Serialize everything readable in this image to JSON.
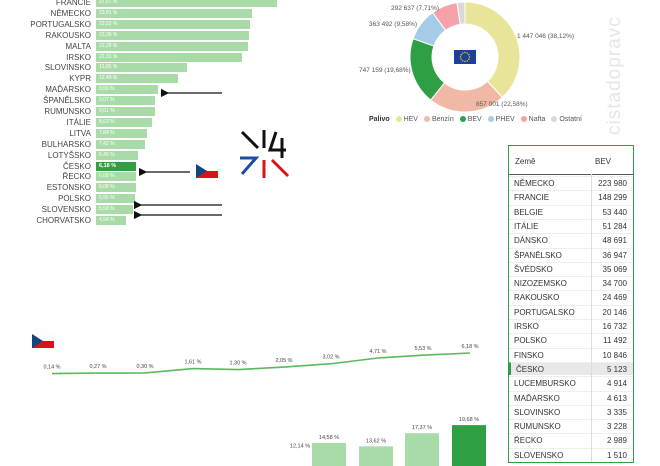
{
  "bar_chart": {
    "rows": [
      {
        "country": "FRANCIE",
        "value": 27.67,
        "label": "27,67 %"
      },
      {
        "country": "NĚMECKO",
        "value": 23.81,
        "label": "23,81 %"
      },
      {
        "country": "PORTUGALSKO",
        "value": 23.52,
        "label": "23,52 %"
      },
      {
        "country": "RAKOUSKO",
        "value": 23.36,
        "label": "23,36 %"
      },
      {
        "country": "MALTA",
        "value": 23.28,
        "label": "23,28 %"
      },
      {
        "country": "IRSKO",
        "value": 22.31,
        "label": "22,31 %"
      },
      {
        "country": "SLOVINSKO",
        "value": 13.85,
        "label": "13,85 %"
      },
      {
        "country": "KYPR",
        "value": 12.49,
        "label": "12,49 %"
      },
      {
        "country": "MAĎARSKO",
        "value": 9.55,
        "label": "9,55 %"
      },
      {
        "country": "ŠPANĚLSKO",
        "value": 9.07,
        "label": "9,07 %"
      },
      {
        "country": "RUMUNSKO",
        "value": 9.01,
        "label": "9,01 %"
      },
      {
        "country": "ITÁLIE",
        "value": 8.63,
        "label": "8,63 %"
      },
      {
        "country": "LITVA",
        "value": 7.84,
        "label": "7,84 %"
      },
      {
        "country": "BULHARSKO",
        "value": 7.42,
        "label": "7,42 %"
      },
      {
        "country": "LOTYŠSKO",
        "value": 6.46,
        "label": "6,46 %"
      },
      {
        "country": "ČESKO",
        "value": 6.18,
        "label": "6,18 %",
        "highlight": true
      },
      {
        "country": "ŘECKO",
        "value": 6.09,
        "label": "6,09 %"
      },
      {
        "country": "ESTONSKO",
        "value": 6.08,
        "label": "6,08 %"
      },
      {
        "country": "POLSKO",
        "value": 5.95,
        "label": "5,95 %"
      },
      {
        "country": "SLOVENSKO",
        "value": 5.58,
        "label": "5,58 %"
      },
      {
        "country": "CHORVATSKO",
        "value": 4.54,
        "label": "4,54 %"
      }
    ]
  },
  "donut": {
    "slices": [
      {
        "name": "HEV",
        "value": 1447046,
        "label": "1 447 046 (38,12%)",
        "color": "#e8e59a"
      },
      {
        "name": "Benzín",
        "value": 857001,
        "label": "857 001 (22,58%)",
        "color": "#f2b8a6"
      },
      {
        "name": "BEV",
        "value": 747159,
        "label": "747 159 (19,68%)",
        "color": "#2ea043"
      },
      {
        "name": "PHEV",
        "value": 363492,
        "label": "363 492 (9,58%)",
        "color": "#a6cbe8"
      },
      {
        "name": "Nafta",
        "value": 292637,
        "label": "292 637 (7,71%)",
        "color": "#f5a3a8"
      },
      {
        "name": "Ostatní",
        "value": 88000,
        "color": "#d9d9d9"
      }
    ],
    "legend_title": "Palivo",
    "legend": [
      "HEV",
      "Benzín",
      "BEV",
      "PHEV",
      "Nafta",
      "Ostatní"
    ],
    "eu_flag_color": "#1d3f9e"
  },
  "watermark": "cistadopravc",
  "table": {
    "col1": "Země",
    "col2": "BEV",
    "rows": [
      {
        "country": "NĚMECKO",
        "bev": "223 980"
      },
      {
        "country": "FRANCIE",
        "bev": "148 299"
      },
      {
        "country": "BELGIE",
        "bev": "53 440"
      },
      {
        "country": "ITÁLIE",
        "bev": "51 284"
      },
      {
        "country": "DÁNSKO",
        "bev": "48 691"
      },
      {
        "country": "ŠPANĚLSKO",
        "bev": "36 947"
      },
      {
        "country": "ŠVÉDSKO",
        "bev": "35 069"
      },
      {
        "country": "NIZOZEMSKO",
        "bev": "34 700"
      },
      {
        "country": "RAKOUSKO",
        "bev": "24 469"
      },
      {
        "country": "PORTUGALSKO",
        "bev": "20 146"
      },
      {
        "country": "IRSKO",
        "bev": "16 732"
      },
      {
        "country": "POLSKO",
        "bev": "11 492"
      },
      {
        "country": "FINSKO",
        "bev": "10 846"
      },
      {
        "country": "ČESKO",
        "bev": "5 123",
        "highlight": true
      },
      {
        "country": "LUCEMBURSKO",
        "bev": "4 914"
      },
      {
        "country": "MAĎARSKO",
        "bev": "4 613"
      },
      {
        "country": "SLOVINSKO",
        "bev": "3 335"
      },
      {
        "country": "RUMUNSKO",
        "bev": "3 228"
      },
      {
        "country": "ŘECKO",
        "bev": "2 989"
      },
      {
        "country": "SLOVENSKO",
        "bev": "1 510"
      }
    ]
  },
  "chart_data": [
    {
      "type": "bar",
      "orientation": "horizontal",
      "categories": [
        "FRANCIE",
        "NĚMECKO",
        "PORTUGALSKO",
        "RAKOUSKO",
        "MALTA",
        "IRSKO",
        "SLOVINSKO",
        "KYPR",
        "MAĎARSKO",
        "ŠPANĚLSKO",
        "RUMUNSKO",
        "ITÁLIE",
        "LITVA",
        "BULHARSKO",
        "LOTYŠSKO",
        "ČESKO",
        "ŘECKO",
        "ESTONSKO",
        "POLSKO",
        "SLOVENSKO",
        "CHORVATSKO"
      ],
      "values": [
        27.67,
        23.81,
        23.52,
        23.36,
        23.28,
        22.31,
        13.85,
        12.49,
        9.55,
        9.07,
        9.01,
        8.63,
        7.84,
        7.42,
        6.46,
        6.18,
        6.09,
        6.08,
        5.95,
        5.58,
        4.54
      ],
      "colors": {
        "default": "#a8dba8",
        "highlight": "#2ea043"
      }
    },
    {
      "type": "pie",
      "labels": [
        "HEV",
        "Benzín",
        "BEV",
        "PHEV",
        "Nafta",
        "Ostatní"
      ],
      "values": [
        1447046,
        857001,
        747159,
        363492,
        292637,
        88000
      ],
      "legend": "bottom"
    },
    {
      "type": "line",
      "values": [
        0.14,
        0.27,
        0.3,
        1.61,
        1.3,
        2.05,
        3.02,
        4.71,
        5.53,
        6.18
      ],
      "labels": [
        "0,14 %",
        "0,27 %",
        "0,30 %",
        "1,61 %",
        "1,30 %",
        "2,05 %",
        "3,02 %",
        "4,71 %",
        "5,53 %",
        "6,18 %"
      ],
      "color": "#5cb85c"
    },
    {
      "type": "bar",
      "values": [
        12.14,
        14.58,
        13.62,
        17.37,
        19.68
      ],
      "labels": [
        "12,14 %",
        "14,58 %",
        "13,62 %",
        "17,37 %",
        "19,68 %"
      ],
      "colors": {
        "default": "#a8dba8",
        "last": "#2ea043"
      }
    }
  ],
  "annotations": {
    "arrows_to": [
      "MAĎARSKO",
      "ČESKO",
      "POLSKO",
      "SLOVENSKO"
    ],
    "arrow_color": "#111111"
  }
}
